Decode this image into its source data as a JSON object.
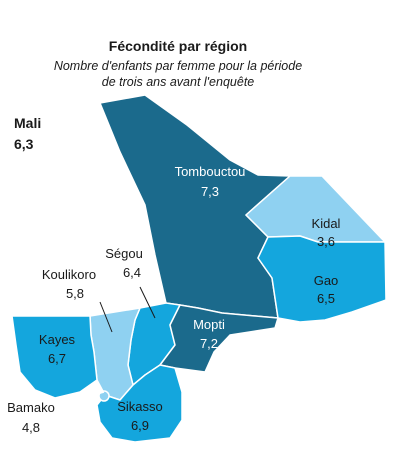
{
  "header": {
    "title": "Fécondité par région",
    "subtitle_line1": "Nombre d'enfants par femme pour la période",
    "subtitle_line2": "de trois ans avant l'enquête"
  },
  "country": {
    "name": "Mali",
    "value": "6,3"
  },
  "colors": {
    "dark": "#1b6a8c",
    "medium": "#14a6dd",
    "light": "#8fd1f1",
    "text_light": "#ffffff",
    "text_dark": "#1a1a1a"
  },
  "regions": {
    "tombouctou": {
      "name": "Tombouctou",
      "value": "7,3",
      "fertility": 7.3
    },
    "kidal": {
      "name": "Kidal",
      "value": "3,6",
      "fertility": 3.6
    },
    "gao": {
      "name": "Gao",
      "value": "6,5",
      "fertility": 6.5
    },
    "mopti": {
      "name": "Mopti",
      "value": "7,2",
      "fertility": 7.2
    },
    "segou": {
      "name": "Ségou",
      "value": "6,4",
      "fertility": 6.4
    },
    "koulikoro": {
      "name": "Koulikoro",
      "value": "5,8",
      "fertility": 5.8
    },
    "kayes": {
      "name": "Kayes",
      "value": "6,7",
      "fertility": 6.7
    },
    "bamako": {
      "name": "Bamako",
      "value": "4,8",
      "fertility": 4.8
    },
    "sikasso": {
      "name": "Sikasso",
      "value": "6,9",
      "fertility": 6.9
    }
  }
}
